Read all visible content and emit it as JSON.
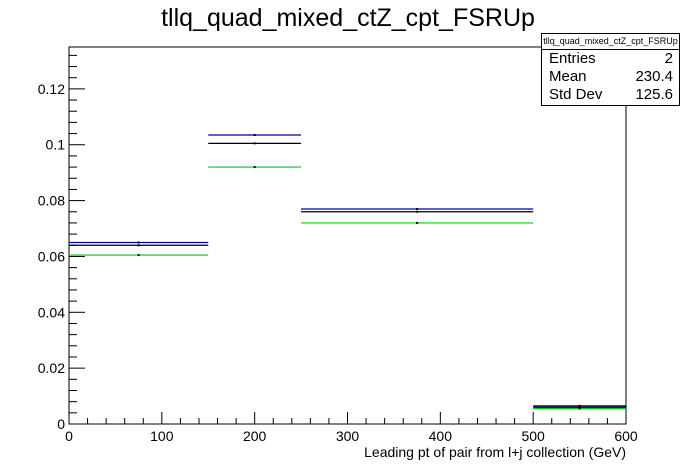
{
  "chart_data": {
    "type": "step-histogram",
    "title": "tllq_quad_mixed_ctZ_cpt_FSRUp",
    "xlabel": "Leading pt of pair from l+j collection (GeV)",
    "ylabel": "",
    "xlim": [
      0,
      600
    ],
    "ylim": [
      0,
      0.135
    ],
    "x_ticks": [
      0,
      100,
      200,
      300,
      400,
      500,
      600
    ],
    "x_tick_labels": [
      "0",
      "100",
      "200",
      "300",
      "400",
      "500",
      "600"
    ],
    "y_ticks": [
      0,
      0.02,
      0.04,
      0.06,
      0.08,
      0.1,
      0.12
    ],
    "y_tick_labels": [
      "0",
      "0.02",
      "0.04",
      "0.06",
      "0.08",
      "0.1",
      "0.12"
    ],
    "bin_edges": [
      0,
      150,
      250,
      500,
      600
    ],
    "series": [
      {
        "color": "#000099",
        "values": [
          0.065,
          0.1035,
          0.077,
          0.0065
        ]
      },
      {
        "color": "#000000",
        "values": [
          0.064,
          0.1005,
          0.076,
          0.006
        ]
      },
      {
        "color": "#00cc00",
        "values": [
          0.0605,
          0.092,
          0.072,
          0.0055
        ]
      }
    ],
    "grid": false,
    "legend": "none"
  },
  "stats": {
    "title": "tllq_quad_mixed_ctZ_cpt_FSRUp",
    "rows": [
      {
        "label": "Entries",
        "value": "2"
      },
      {
        "label": "Mean",
        "value": "230.4"
      },
      {
        "label": "Std Dev",
        "value": "125.6"
      }
    ]
  }
}
